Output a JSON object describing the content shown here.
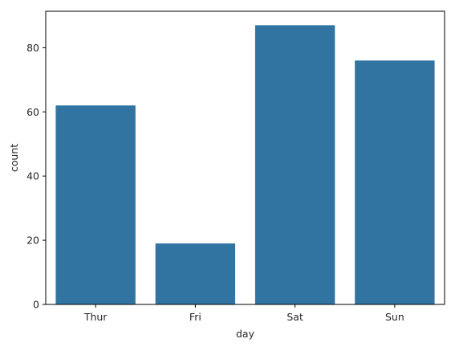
{
  "chart_data": {
    "type": "bar",
    "xlabel": "day",
    "ylabel": "count",
    "categories": [
      "Thur",
      "Fri",
      "Sat",
      "Sun"
    ],
    "values": [
      62,
      19,
      87,
      76
    ],
    "ylim": [
      0,
      91.35
    ],
    "yticks": [
      "0",
      "20",
      "40",
      "60",
      "80"
    ],
    "grid": false,
    "bar_color": "#3274a1"
  }
}
